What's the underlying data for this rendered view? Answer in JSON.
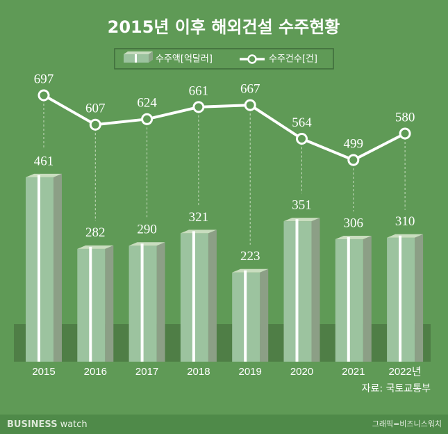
{
  "chart_data": {
    "type": "bar",
    "title": "2015년 이후 해외건설 수주현황",
    "categories": [
      "2015",
      "2016",
      "2017",
      "2018",
      "2019",
      "2020",
      "2021",
      "2022년"
    ],
    "series": [
      {
        "name": "수주액[억달러]",
        "type": "bar",
        "color": "#9cc39f",
        "values": [
          461,
          282,
          290,
          321,
          223,
          351,
          306,
          310
        ]
      },
      {
        "name": "수주건수[건]",
        "type": "line",
        "axis": "y2",
        "color": "#ffffff",
        "values": [
          697,
          607,
          624,
          661,
          667,
          564,
          499,
          580
        ]
      }
    ],
    "source": "자료: 국토교통부"
  },
  "footer": {
    "brand": "BUSINESS",
    "brand_suffix": "watch",
    "credit": "그래픽=비즈니스워치"
  }
}
